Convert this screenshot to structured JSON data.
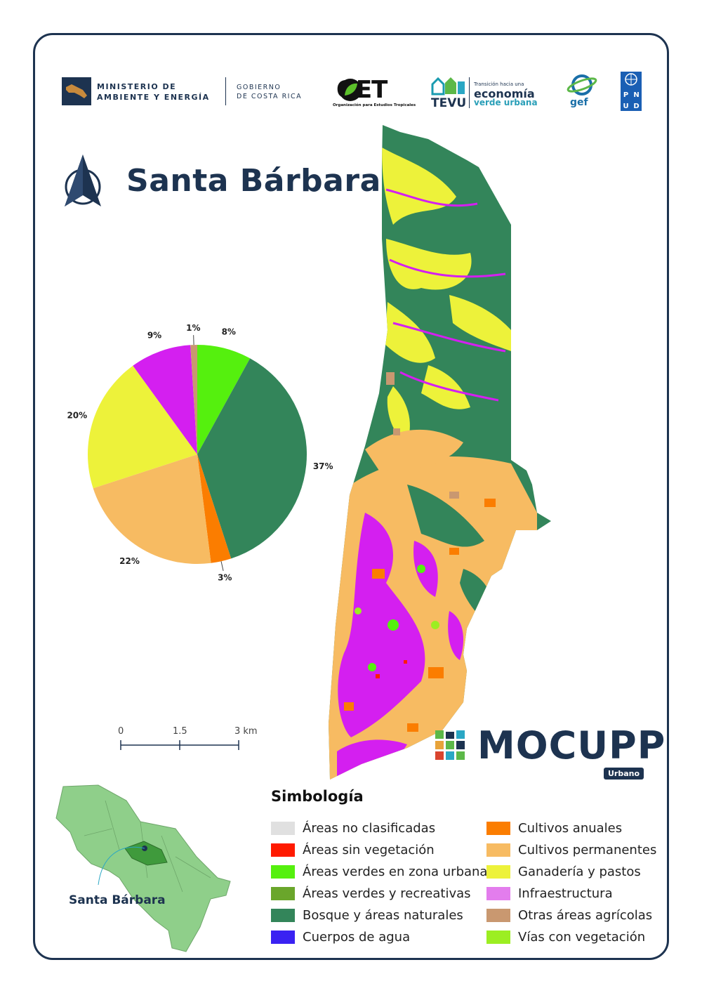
{
  "header": {
    "minae_line1": "MINISTERIO DE",
    "minae_line2": "AMBIENTE Y ENERGÍA",
    "gob_line1": "GOBIERNO",
    "gob_line2": "DE COSTA RICA",
    "oet_name": "OET",
    "oet_sub": "Organización para Estudios Tropicales",
    "tevu_name": "TEVU",
    "tevu_line1": "Transición hacia una",
    "tevu_line2": "economía",
    "tevu_line3": "verde urbana",
    "gef_name": "gef",
    "pnud_letters": [
      "P",
      "N",
      "U",
      "D"
    ]
  },
  "title": "Santa Bárbara",
  "colors": {
    "navy": "#1d3350",
    "no_clasificadas": "#e0e0e0",
    "sin_vegetacion": "#ff1a00",
    "verdes_urbana": "#55f00e",
    "verdes_recreativas": "#6aa62b",
    "bosque": "#33855a",
    "agua": "#3a22f2",
    "cultivos_anuales": "#fb7d00",
    "cultivos_permanentes": "#f7bb62",
    "ganaderia": "#edf23a",
    "infraestructura": "#d41ff0",
    "otras_agricolas": "#c99870",
    "vias_vegetacion": "#9cee22"
  },
  "chart_data": {
    "type": "pie",
    "slices": [
      {
        "label": "8%",
        "value": 8,
        "color": "#55f00e"
      },
      {
        "label": "37%",
        "value": 37,
        "color": "#33855a"
      },
      {
        "label": "3%",
        "value": 3,
        "color": "#fb7d00"
      },
      {
        "label": "22%",
        "value": 22,
        "color": "#f7bb62"
      },
      {
        "label": "20%",
        "value": 20,
        "color": "#edf23a"
      },
      {
        "label": "9%",
        "value": 9,
        "color": "#d41ff0"
      },
      {
        "label": "1%",
        "value": 1,
        "color": "#c99870"
      }
    ]
  },
  "scale": {
    "ticks": [
      "0",
      "1.5",
      "3 km"
    ]
  },
  "legend": {
    "title": "Simbología",
    "left": [
      {
        "label": "Áreas no clasificadas",
        "color": "#e0e0e0"
      },
      {
        "label": "Áreas sin vegetación",
        "color": "#ff1a00"
      },
      {
        "label": "Áreas verdes en zona urbana",
        "color": "#55f00e"
      },
      {
        "label": "Áreas verdes y recreativas",
        "color": "#6aa62b"
      },
      {
        "label": "Bosque y áreas naturales",
        "color": "#33855a"
      },
      {
        "label": "Cuerpos de agua",
        "color": "#3a22f2"
      }
    ],
    "right": [
      {
        "label": "Cultivos anuales",
        "color": "#fb7d00"
      },
      {
        "label": "Cultivos permanentes",
        "color": "#f7bb62"
      },
      {
        "label": "Ganadería y pastos",
        "color": "#edf23a"
      },
      {
        "label": "Infraestructura",
        "color": "#e37ded"
      },
      {
        "label": "Otras áreas agrícolas",
        "color": "#c99870"
      },
      {
        "label": "Vías con vegetación",
        "color": "#9cee22"
      }
    ]
  },
  "brand": {
    "name": "MOCUPP",
    "tag": "Urbano"
  },
  "locator": {
    "label": "Santa Bárbara"
  }
}
